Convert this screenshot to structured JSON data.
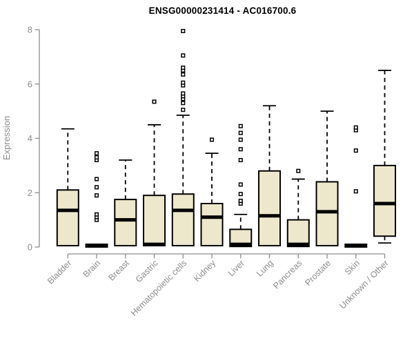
{
  "chart_data": {
    "type": "box",
    "title": "ENSG00000231414 - AC016700.6",
    "xlabel": "",
    "ylabel": "Expression",
    "ylim": [
      0,
      8
    ],
    "yticks": [
      0,
      2,
      4,
      6,
      8
    ],
    "grid": false,
    "legend": "none",
    "categories": [
      "Bladder",
      "Brain",
      "Breast",
      "Gastric",
      "Hematopoietic cells",
      "Kidney",
      "Liver",
      "Lung",
      "Pancreas",
      "Prostate",
      "Skin",
      "Unknown / Other"
    ],
    "series": [
      {
        "category": "Bladder",
        "q1": 0.05,
        "median": 1.35,
        "q3": 2.1,
        "whisker_low": null,
        "whisker_high": 4.35,
        "outliers": []
      },
      {
        "category": "Brain",
        "q1": 0.05,
        "median": 0.05,
        "q3": 0.05,
        "whisker_low": null,
        "whisker_high": null,
        "outliers": [
          1.0,
          1.1,
          1.2,
          1.9,
          2.2,
          2.5,
          3.2,
          3.3,
          3.45
        ]
      },
      {
        "category": "Breast",
        "q1": 0.05,
        "median": 1.0,
        "q3": 1.75,
        "whisker_low": null,
        "whisker_high": 3.2,
        "outliers": []
      },
      {
        "category": "Gastric",
        "q1": 0.05,
        "median": 0.1,
        "q3": 1.9,
        "whisker_low": null,
        "whisker_high": 4.5,
        "outliers": [
          5.35
        ]
      },
      {
        "category": "Hematopoietic cells",
        "q1": 0.05,
        "median": 1.35,
        "q3": 1.95,
        "whisker_low": null,
        "whisker_high": 4.85,
        "outliers": [
          5.05,
          5.3,
          5.45,
          5.55,
          5.65,
          5.95,
          6.05,
          6.35,
          6.5,
          6.6,
          7.05,
          7.95
        ]
      },
      {
        "category": "Kidney",
        "q1": 0.05,
        "median": 1.1,
        "q3": 1.6,
        "whisker_low": null,
        "whisker_high": 3.45,
        "outliers": [
          3.95
        ]
      },
      {
        "category": "Liver",
        "q1": 0.02,
        "median": 0.1,
        "q3": 0.65,
        "whisker_low": null,
        "whisker_high": 1.2,
        "outliers": [
          1.6,
          1.7,
          1.95,
          2.3,
          3.2,
          3.6,
          3.95,
          4.2,
          4.45
        ]
      },
      {
        "category": "Lung",
        "q1": 0.05,
        "median": 1.15,
        "q3": 2.8,
        "whisker_low": null,
        "whisker_high": 5.2,
        "outliers": []
      },
      {
        "category": "Pancreas",
        "q1": 0.02,
        "median": 0.1,
        "q3": 1.0,
        "whisker_low": null,
        "whisker_high": 2.5,
        "outliers": [
          2.8
        ]
      },
      {
        "category": "Prostate",
        "q1": 0.05,
        "median": 1.3,
        "q3": 2.4,
        "whisker_low": null,
        "whisker_high": 5.0,
        "outliers": []
      },
      {
        "category": "Skin",
        "q1": 0.05,
        "median": 0.05,
        "q3": 0.05,
        "whisker_low": null,
        "whisker_high": null,
        "outliers": [
          2.05,
          3.55,
          4.3,
          4.4
        ]
      },
      {
        "category": "Unknown / Other",
        "q1": 0.4,
        "median": 1.6,
        "q3": 3.0,
        "whisker_low": 0.15,
        "whisker_high": 6.5,
        "outliers": []
      }
    ],
    "colors": {
      "box_fill": "#ede8cc",
      "box_stroke": "#000000",
      "median": "#000000",
      "whisker": "#000000",
      "outlier_stroke": "#000000",
      "axis": "#8c8c8c",
      "tick_label": "#8c8c8c",
      "title": "#000000",
      "background": "#ffffff"
    }
  }
}
